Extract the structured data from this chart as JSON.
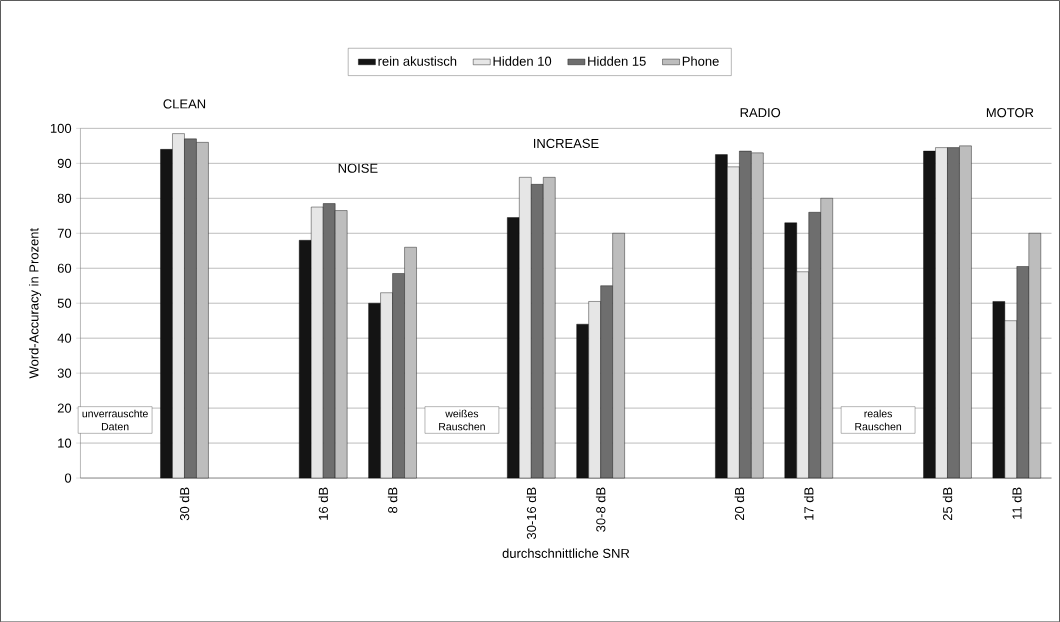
{
  "chart_data": {
    "type": "bar",
    "xlabel": "durchschnittliche SNR",
    "ylabel": "Word-Accuracy in Prozent",
    "categories": [
      null,
      "30 dB",
      null,
      "16 dB",
      "8 dB",
      null,
      "30-16 dB",
      "30-8 dB",
      null,
      "20 dB",
      "17 dB",
      null,
      "25 dB",
      "11 dB"
    ],
    "series": [
      {
        "name": "rein akustisch",
        "color": "#141414",
        "values": [
          null,
          94,
          null,
          68,
          50,
          null,
          74.5,
          44,
          null,
          92.5,
          73,
          null,
          93.5,
          50.5
        ]
      },
      {
        "name": "Hidden 10",
        "color": "#e6e6e6",
        "values": [
          null,
          98.5,
          null,
          77.5,
          53,
          null,
          86,
          50.5,
          null,
          89,
          59,
          null,
          94.5,
          45
        ]
      },
      {
        "name": "Hidden 15",
        "color": "#6e6e6e",
        "values": [
          null,
          97,
          null,
          78.5,
          58.5,
          null,
          84,
          55,
          null,
          93.5,
          76,
          null,
          94.5,
          60.5
        ]
      },
      {
        "name": "Phone",
        "color": "#bdbdbd",
        "values": [
          null,
          96,
          null,
          76.5,
          66,
          null,
          86,
          70,
          null,
          93,
          80,
          null,
          95,
          70
        ]
      }
    ],
    "ylim": [
      0,
      100
    ],
    "yticks": [
      0,
      10,
      20,
      30,
      40,
      50,
      60,
      70,
      80,
      90,
      100
    ],
    "grid": "y",
    "legend": "top",
    "annotations": [
      "CLEAN",
      "NOISE",
      "INCREASE",
      "RADIO",
      "MOTOR",
      "unverrauschte Daten",
      "weißes Rauschen",
      "reales Rauschen"
    ]
  }
}
